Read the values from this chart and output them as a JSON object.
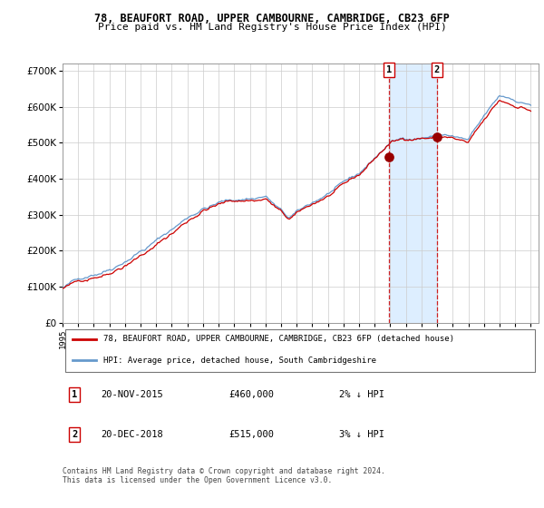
{
  "title_line1": "78, BEAUFORT ROAD, UPPER CAMBOURNE, CAMBRIDGE, CB23 6FP",
  "title_line2": "Price paid vs. HM Land Registry's House Price Index (HPI)",
  "legend_line1": "78, BEAUFORT ROAD, UPPER CAMBOURNE, CAMBRIDGE, CB23 6FP (detached house)",
  "legend_line2": "HPI: Average price, detached house, South Cambridgeshire",
  "footnote": "Contains HM Land Registry data © Crown copyright and database right 2024.\nThis data is licensed under the Open Government Licence v3.0.",
  "transaction1_date": "20-NOV-2015",
  "transaction1_price": "£460,000",
  "transaction1_hpi": "2% ↓ HPI",
  "transaction1_year": 2015.9,
  "transaction1_value": 460000,
  "transaction2_date": "20-DEC-2018",
  "transaction2_price": "£515,000",
  "transaction2_hpi": "3% ↓ HPI",
  "transaction2_year": 2018.97,
  "transaction2_value": 515000,
  "ylim_min": 0,
  "ylim_max": 720000,
  "xlim_min": 1995,
  "xlim_max": 2025.5,
  "red_color": "#cc0000",
  "blue_color": "#6699cc",
  "bg_color": "#ffffff",
  "grid_color": "#cccccc",
  "shade_color": "#ddeeff",
  "dot_color": "#990000",
  "title_fontsize": 8.5,
  "subtitle_fontsize": 8.0,
  "tick_fontsize": 6.5,
  "ytick_fontsize": 7.5,
  "legend_fontsize": 6.5,
  "table_fontsize": 7.5,
  "footnote_fontsize": 5.8
}
